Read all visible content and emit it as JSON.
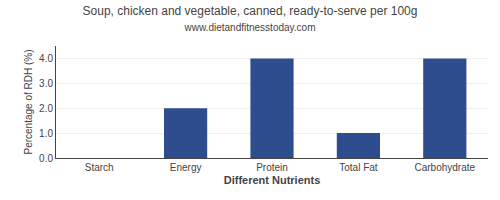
{
  "chart_data": {
    "type": "bar",
    "title": "Soup, chicken and vegetable, canned, ready-to-serve per 100g",
    "subtitle": "www.dietandfitnesstoday.com",
    "xlabel": "Different Nutrients",
    "ylabel": "Percentage of RDH (%)",
    "categories": [
      "Starch",
      "Energy",
      "Protein",
      "Total Fat",
      "Carbohydrate"
    ],
    "values": [
      0.0,
      2.0,
      4.0,
      1.0,
      4.0
    ],
    "color": "#2e4d8e",
    "ylim": [
      0,
      4.5
    ],
    "yticks": [
      {
        "value": 0,
        "label": "0.0"
      },
      {
        "value": 1,
        "label": "1.0"
      },
      {
        "value": 2,
        "label": "2.0"
      },
      {
        "value": 3,
        "label": "3.0"
      },
      {
        "value": 4,
        "label": "4.0"
      }
    ],
    "grid": true
  }
}
